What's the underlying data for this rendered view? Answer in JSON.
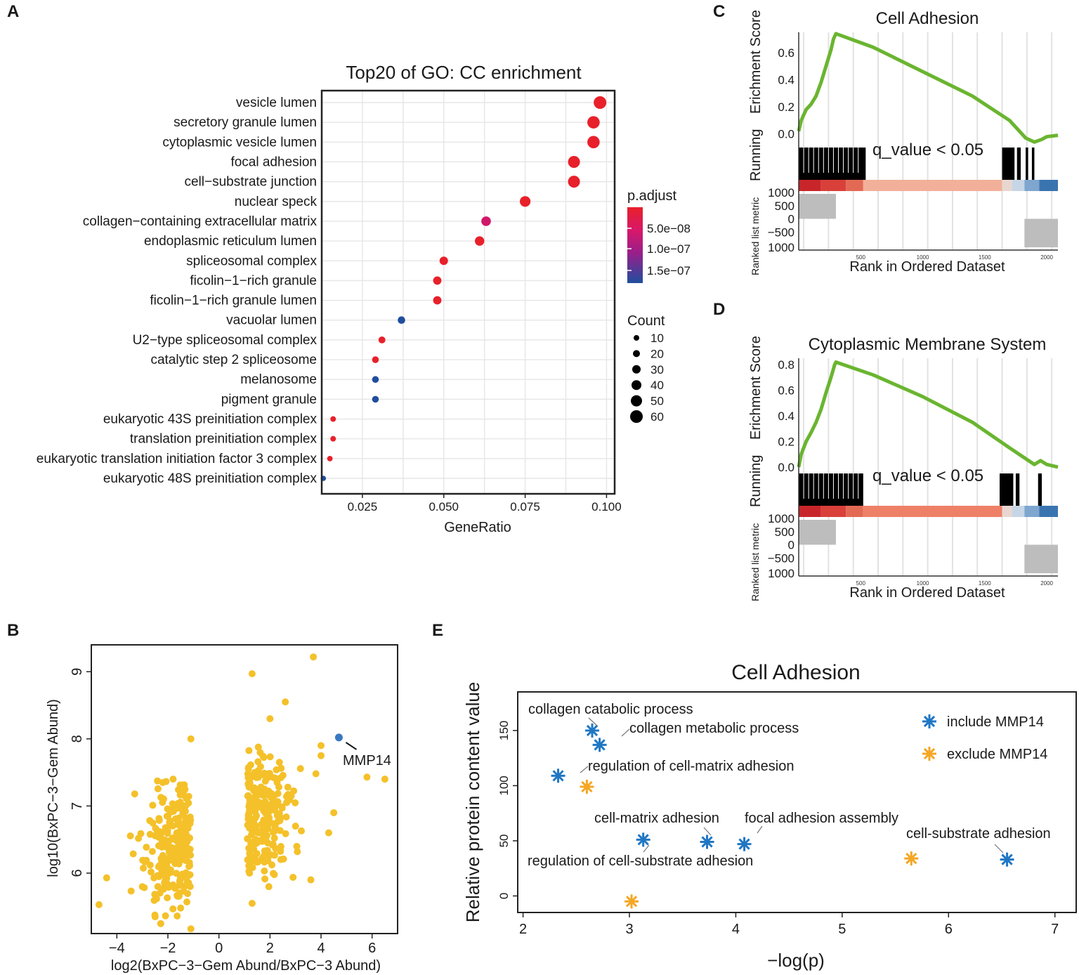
{
  "panels": {
    "A": {
      "letter": "A"
    },
    "B": {
      "letter": "B"
    },
    "C": {
      "letter": "C"
    },
    "D": {
      "letter": "D"
    },
    "E": {
      "letter": "E"
    }
  },
  "colors": {
    "red": "#e8202a",
    "blue": "#1f4e9e",
    "green": "#6ab530",
    "gold": "#f4c12a",
    "mmp_blue": "#3a78c2",
    "star_blue": "#1f77c4",
    "star_orange": "#f5a623"
  },
  "chart_data": [
    {
      "id": "A",
      "type": "scatter",
      "subtype": "dotplot",
      "title": "Top20 of GO: CC enrichment",
      "xlabel": "GeneRatio",
      "ylabel": "",
      "xlim": [
        0.0125,
        0.1025
      ],
      "xticks": [
        "0.025",
        "0.050",
        "0.075",
        "0.100"
      ],
      "xtick_values": [
        0.025,
        0.05,
        0.075,
        0.1
      ],
      "grid": true,
      "points": [
        {
          "term": "vesicle lumen",
          "ratio": 0.098,
          "count": 60,
          "padj": "low"
        },
        {
          "term": "secretory granule lumen",
          "ratio": 0.096,
          "count": 58,
          "padj": "low"
        },
        {
          "term": "cytoplasmic vesicle lumen",
          "ratio": 0.096,
          "count": 58,
          "padj": "low"
        },
        {
          "term": "focal adhesion",
          "ratio": 0.09,
          "count": 55,
          "padj": "low"
        },
        {
          "term": "cell−substrate junction",
          "ratio": 0.09,
          "count": 55,
          "padj": "low"
        },
        {
          "term": "nuclear speck",
          "ratio": 0.075,
          "count": 46,
          "padj": "low"
        },
        {
          "term": "collagen−containing extracellular matrix",
          "ratio": 0.063,
          "count": 38,
          "padj": "mid"
        },
        {
          "term": "endoplasmic reticulum lumen",
          "ratio": 0.061,
          "count": 37,
          "padj": "low"
        },
        {
          "term": "spliceosomal complex",
          "ratio": 0.05,
          "count": 30,
          "padj": "low"
        },
        {
          "term": "ficolin−1−rich granule",
          "ratio": 0.048,
          "count": 29,
          "padj": "low"
        },
        {
          "term": "ficolin−1−rich granule lumen",
          "ratio": 0.048,
          "count": 29,
          "padj": "low"
        },
        {
          "term": "vacuolar lumen",
          "ratio": 0.037,
          "count": 23,
          "padj": "high"
        },
        {
          "term": "U2−type spliceosomal complex",
          "ratio": 0.031,
          "count": 19,
          "padj": "low"
        },
        {
          "term": "catalytic step 2 spliceosome",
          "ratio": 0.029,
          "count": 18,
          "padj": "low"
        },
        {
          "term": "melanosome",
          "ratio": 0.029,
          "count": 18,
          "padj": "high"
        },
        {
          "term": "pigment granule",
          "ratio": 0.029,
          "count": 18,
          "padj": "high"
        },
        {
          "term": "eukaryotic 43S preinitiation complex",
          "ratio": 0.016,
          "count": 10,
          "padj": "low"
        },
        {
          "term": "translation preinitiation complex",
          "ratio": 0.016,
          "count": 10,
          "padj": "low"
        },
        {
          "term": "eukaryotic translation initiation factor 3 complex",
          "ratio": 0.015,
          "count": 9,
          "padj": "low"
        },
        {
          "term": "eukaryotic 48S preinitiation complex",
          "ratio": 0.013,
          "count": 8,
          "padj": "high"
        }
      ],
      "legend_color": {
        "title": "p.adjust",
        "labels": [
          "5.0e−08",
          "1.0e−07",
          "1.5e−07"
        ]
      },
      "legend_size": {
        "title": "Count",
        "labels": [
          "10",
          "20",
          "30",
          "40",
          "50",
          "60"
        ],
        "values": [
          10,
          20,
          30,
          40,
          50,
          60
        ]
      }
    },
    {
      "id": "B",
      "type": "scatter",
      "title": "",
      "xlabel": "log2(BxPC−3−Gem Abund/BxPC−3 Abund)",
      "ylabel": "log10(BxPC−3−Gem Abund)",
      "xlim": [
        -5.0,
        7.0
      ],
      "ylim": [
        5.1,
        9.4
      ],
      "xticks": [
        "−4",
        "−2",
        "0",
        "2",
        "4",
        "6"
      ],
      "xtick_values": [
        -4,
        -2,
        0,
        2,
        4,
        6
      ],
      "yticks": [
        "6",
        "7",
        "8",
        "9"
      ],
      "ytick_values": [
        6,
        7,
        8,
        9
      ],
      "highlight": {
        "label": "MMP14",
        "x": 4.7,
        "y": 8.02
      },
      "extra_points": [
        [
          3.7,
          9.22
        ],
        [
          1.3,
          8.97
        ],
        [
          6.5,
          7.4
        ],
        [
          5.8,
          7.43
        ],
        [
          4.0,
          7.9
        ],
        [
          4.0,
          7.75
        ],
        [
          3.6,
          5.9
        ],
        [
          1.3,
          5.55
        ],
        [
          -1.1,
          5.17
        ],
        [
          -4.7,
          5.53
        ],
        [
          2.6,
          8.55
        ],
        [
          2.0,
          8.3
        ],
        [
          3.8,
          7.48
        ],
        [
          4.3,
          6.6
        ],
        [
          4.5,
          6.9
        ],
        [
          -1.1,
          8.0
        ],
        [
          -2.2,
          7.35
        ],
        [
          -3.3,
          7.18
        ],
        [
          -2.5,
          5.35
        ],
        [
          -4.4,
          5.93
        ],
        [
          -1.5,
          5.48
        ],
        [
          3.0,
          6.7
        ],
        [
          1.2,
          6.0
        ],
        [
          2.4,
          6.35
        ]
      ]
    },
    {
      "id": "C",
      "type": "line",
      "subtype": "gsea",
      "title": "Cell Adhesion",
      "ylabel_top": [
        "Running",
        "Erichment Score"
      ],
      "ylabel_bottom": "Ranked list metric",
      "xlabel": "Rank in Ordered Dataset",
      "annotation": "q_value < 0.05",
      "yticks": [
        "0.0",
        "0.2",
        "0.4",
        "0.6"
      ],
      "ytick_values": [
        0.0,
        0.2,
        0.4,
        0.6
      ],
      "ylim": [
        -0.1,
        0.75
      ],
      "metric_ticks": [
        "1000",
        "500",
        "0",
        "−500",
        "1000"
      ],
      "rank_ticks": [
        "500",
        "1000",
        "1500",
        "2000"
      ],
      "rank_tick_values": [
        500,
        1000,
        1500,
        2000
      ],
      "xlim": [
        0,
        2090
      ],
      "es_curve": [
        [
          0,
          0.02
        ],
        [
          20,
          0.1
        ],
        [
          60,
          0.18
        ],
        [
          100,
          0.22
        ],
        [
          140,
          0.28
        ],
        [
          180,
          0.38
        ],
        [
          220,
          0.5
        ],
        [
          260,
          0.62
        ],
        [
          280,
          0.7
        ],
        [
          300,
          0.74
        ],
        [
          600,
          0.64
        ],
        [
          1000,
          0.46
        ],
        [
          1400,
          0.28
        ],
        [
          1700,
          0.1
        ],
        [
          1830,
          -0.03
        ],
        [
          1900,
          -0.06
        ],
        [
          1960,
          -0.04
        ],
        [
          2000,
          -0.02
        ],
        [
          2090,
          -0.01
        ]
      ]
    },
    {
      "id": "D",
      "type": "line",
      "subtype": "gsea",
      "title": "Cytoplasmic Membrane System",
      "ylabel_top": [
        "Running",
        "Erichment Score"
      ],
      "ylabel_bottom": "Ranked list metric",
      "xlabel": "Rank in Ordered Dataset",
      "annotation": "q_value < 0.05",
      "yticks": [
        "0.0",
        "0.2",
        "0.4",
        "0.6",
        "0.8"
      ],
      "ytick_values": [
        0.0,
        0.2,
        0.4,
        0.6,
        0.8
      ],
      "ylim": [
        -0.05,
        0.85
      ],
      "metric_ticks": [
        "1000",
        "500",
        "0",
        "−500",
        "1000"
      ],
      "rank_ticks": [
        "500",
        "1000",
        "1500",
        "2000"
      ],
      "rank_tick_values": [
        500,
        1000,
        1500,
        2000
      ],
      "xlim": [
        0,
        2090
      ],
      "es_curve": [
        [
          0,
          0.0
        ],
        [
          20,
          0.1
        ],
        [
          60,
          0.2
        ],
        [
          100,
          0.27
        ],
        [
          140,
          0.35
        ],
        [
          180,
          0.45
        ],
        [
          220,
          0.58
        ],
        [
          260,
          0.7
        ],
        [
          290,
          0.8
        ],
        [
          300,
          0.82
        ],
        [
          600,
          0.72
        ],
        [
          1000,
          0.55
        ],
        [
          1400,
          0.35
        ],
        [
          1700,
          0.15
        ],
        [
          1900,
          0.02
        ],
        [
          1950,
          0.05
        ],
        [
          2000,
          0.02
        ],
        [
          2090,
          0.0
        ]
      ]
    },
    {
      "id": "E",
      "type": "scatter",
      "title": "Cell Adhesion",
      "xlabel": "−log(p)",
      "ylabel": "Relative protein content value",
      "xlim": [
        1.95,
        7.2
      ],
      "ylim": [
        -15,
        185
      ],
      "xticks": [
        "2",
        "3",
        "4",
        "5",
        "6",
        "7"
      ],
      "xtick_values": [
        2,
        3,
        4,
        5,
        6,
        7
      ],
      "yticks": [
        "0",
        "50",
        "100",
        "150"
      ],
      "ytick_values": [
        0,
        50,
        100,
        150
      ],
      "legend": [
        "include  MMP14",
        "exclude  MMP14"
      ],
      "include_points": [
        {
          "x": 2.65,
          "y": 150,
          "label": "collagen catabolic process"
        },
        {
          "x": 2.72,
          "y": 137,
          "label": "collagen metabolic process"
        },
        {
          "x": 2.33,
          "y": 109,
          "label": "regulation of cell-matrix adhesion"
        },
        {
          "x": 3.13,
          "y": 51,
          "label": "regulation of cell-substrate adhesion"
        },
        {
          "x": 3.73,
          "y": 49,
          "label": "cell-matrix adhesion"
        },
        {
          "x": 4.08,
          "y": 47,
          "label": "focal adhesion assembly"
        },
        {
          "x": 6.55,
          "y": 33,
          "label": "cell-substrate adhesion"
        }
      ],
      "exclude_points": [
        {
          "x": 2.6,
          "y": 99
        },
        {
          "x": 3.02,
          "y": -5
        },
        {
          "x": 5.65,
          "y": 34
        }
      ]
    }
  ]
}
